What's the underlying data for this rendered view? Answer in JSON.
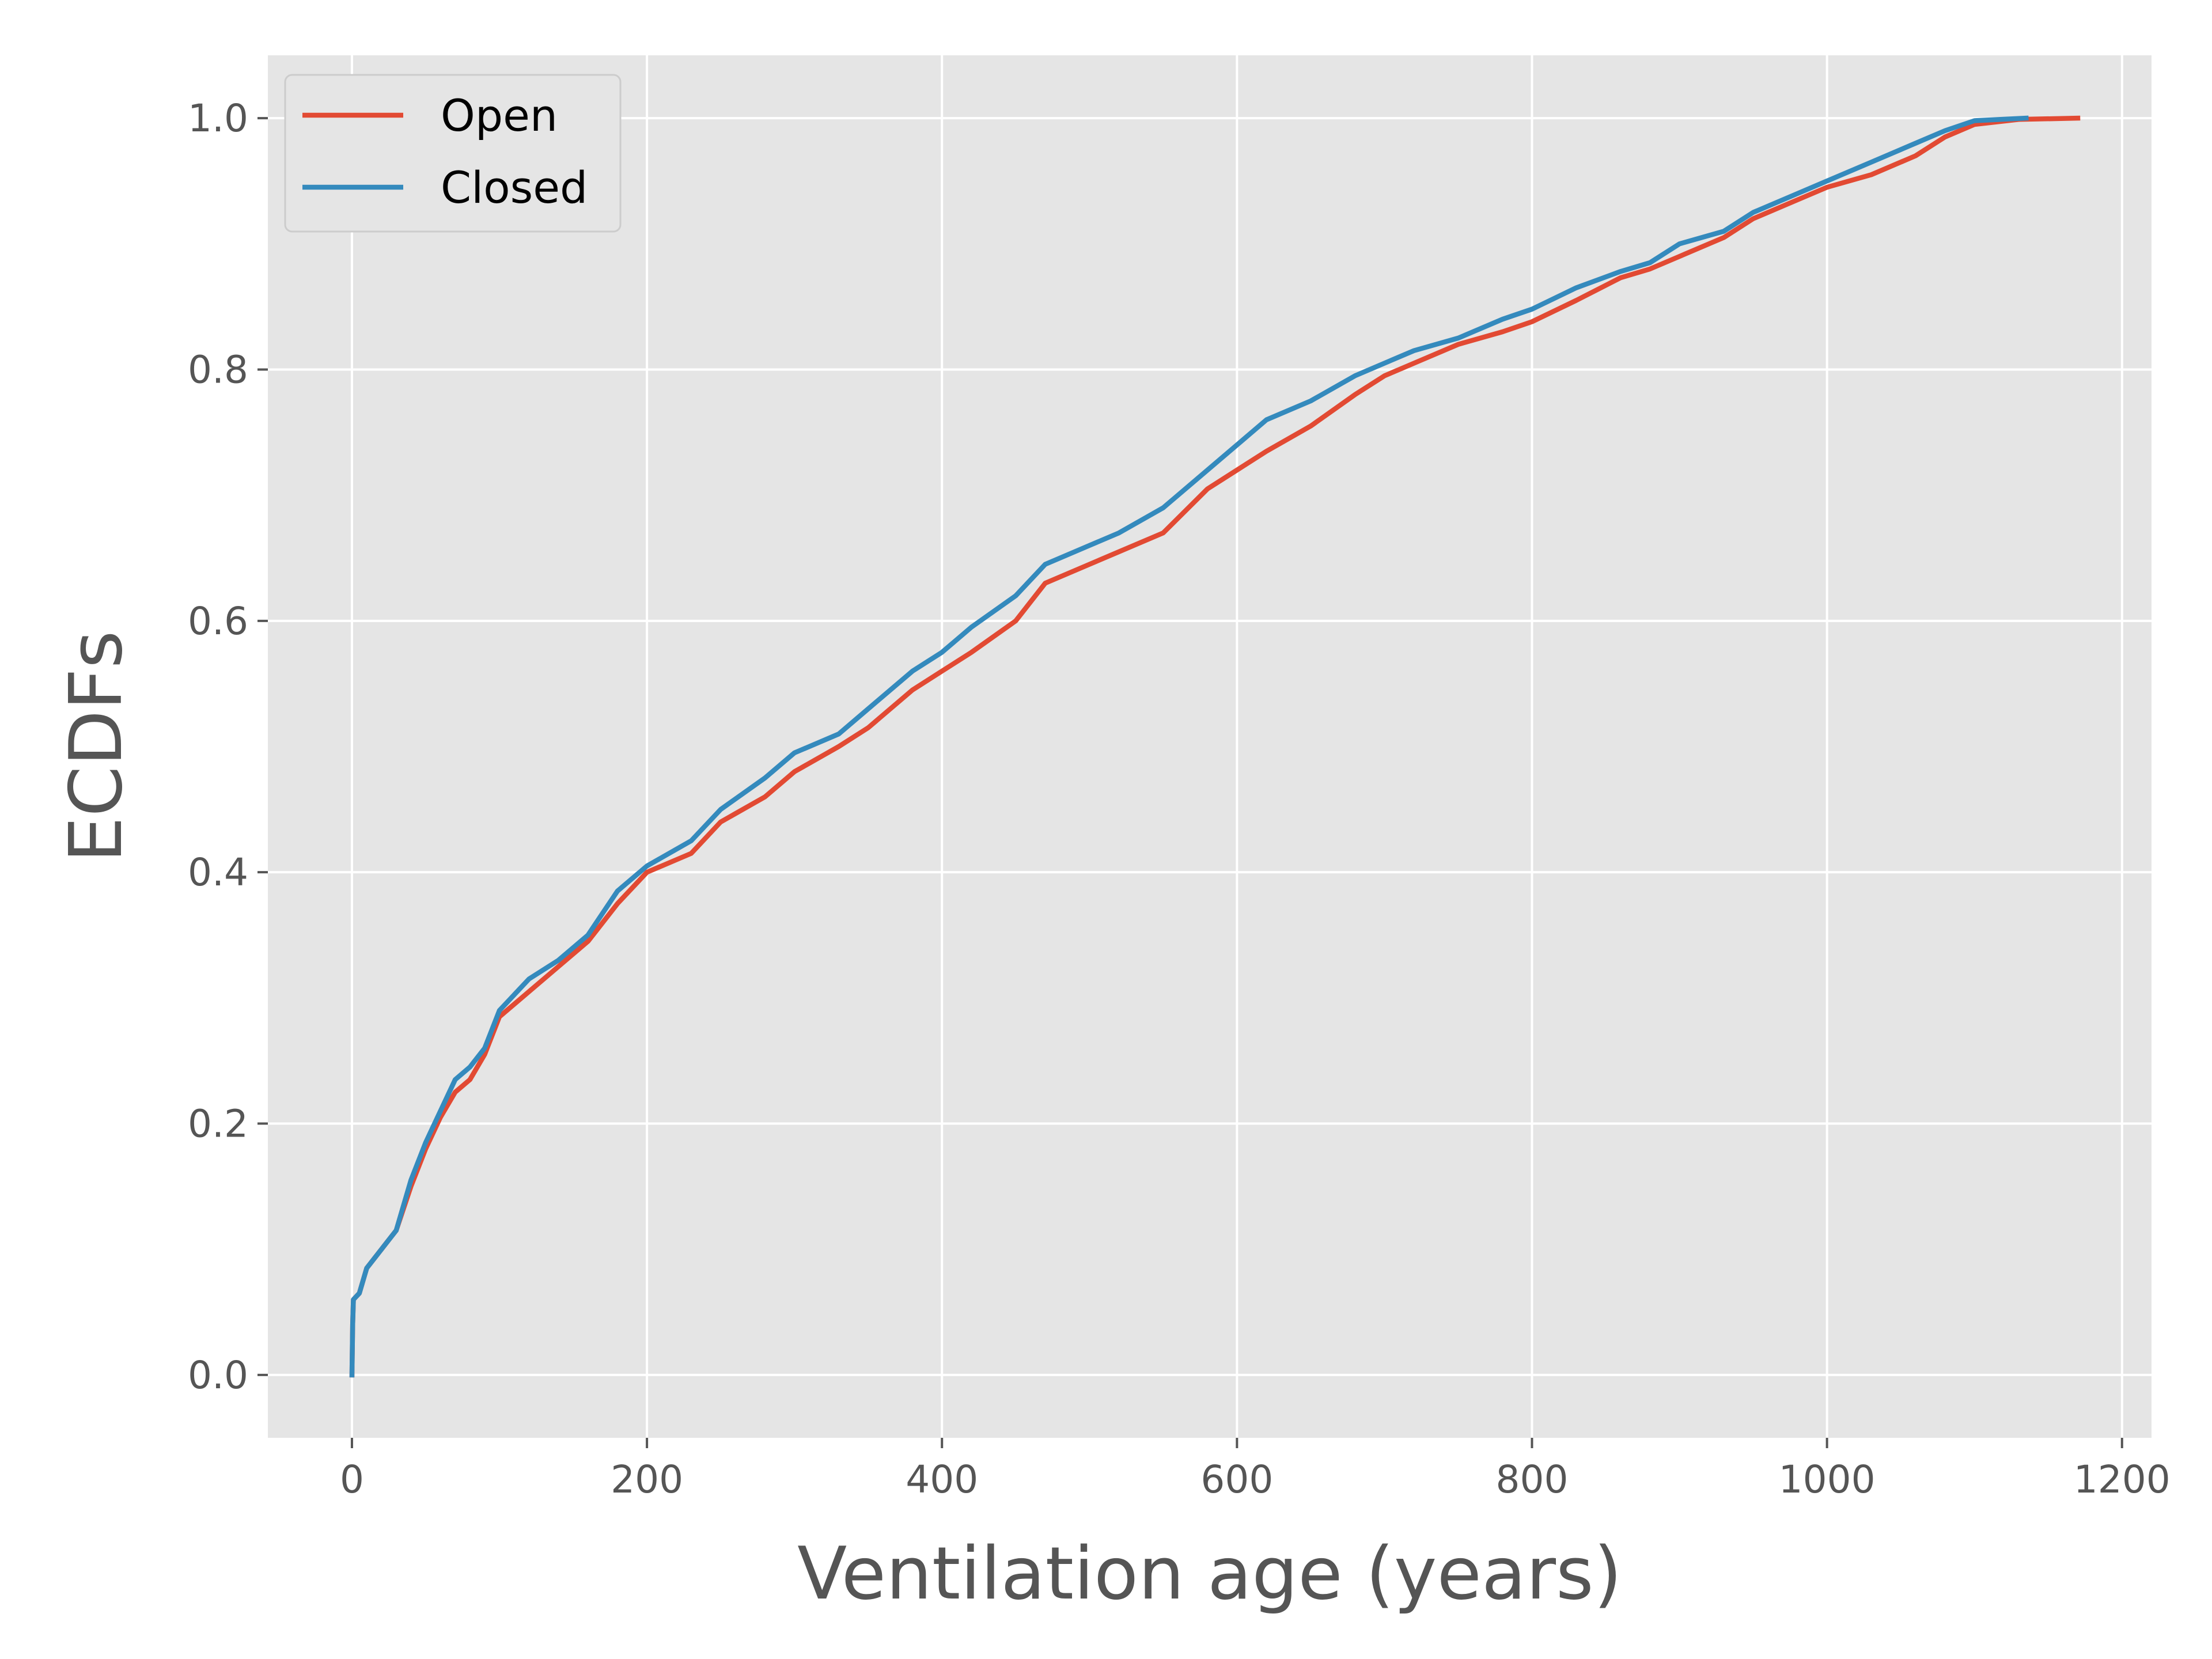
{
  "chart_data": {
    "type": "line",
    "title": "",
    "xlabel": "Ventilation age (years)",
    "ylabel": "ECDFs",
    "xlim": [
      -57,
      1220
    ],
    "ylim": [
      -0.05,
      1.05
    ],
    "xticks": [
      0,
      200,
      400,
      600,
      800,
      1000,
      1200
    ],
    "xtick_labels": [
      "0",
      "200",
      "400",
      "600",
      "800",
      "1000",
      "1200"
    ],
    "yticks": [
      0.0,
      0.2,
      0.4,
      0.6,
      0.8,
      1.0
    ],
    "ytick_labels": [
      "0.0",
      "0.2",
      "0.4",
      "0.6",
      "0.8",
      "1.0"
    ],
    "grid": true,
    "legend_position": "top-left",
    "background": "#e5e5e5",
    "series": [
      {
        "name": "Open",
        "color": "#e24a33",
        "points": [
          [
            0,
            0.0
          ],
          [
            0.5,
            0.04
          ],
          [
            1,
            0.06
          ],
          [
            5,
            0.065
          ],
          [
            10,
            0.085
          ],
          [
            20,
            0.1
          ],
          [
            30,
            0.115
          ],
          [
            40,
            0.15
          ],
          [
            50,
            0.18
          ],
          [
            60,
            0.205
          ],
          [
            70,
            0.225
          ],
          [
            80,
            0.235
          ],
          [
            90,
            0.255
          ],
          [
            100,
            0.285
          ],
          [
            120,
            0.305
          ],
          [
            140,
            0.325
          ],
          [
            160,
            0.345
          ],
          [
            180,
            0.375
          ],
          [
            200,
            0.4
          ],
          [
            230,
            0.415
          ],
          [
            250,
            0.44
          ],
          [
            280,
            0.46
          ],
          [
            300,
            0.48
          ],
          [
            330,
            0.5
          ],
          [
            350,
            0.515
          ],
          [
            380,
            0.545
          ],
          [
            400,
            0.56
          ],
          [
            420,
            0.575
          ],
          [
            450,
            0.6
          ],
          [
            470,
            0.63
          ],
          [
            500,
            0.645
          ],
          [
            520,
            0.655
          ],
          [
            550,
            0.67
          ],
          [
            580,
            0.705
          ],
          [
            600,
            0.72
          ],
          [
            620,
            0.735
          ],
          [
            650,
            0.755
          ],
          [
            680,
            0.78
          ],
          [
            700,
            0.795
          ],
          [
            720,
            0.805
          ],
          [
            750,
            0.82
          ],
          [
            780,
            0.83
          ],
          [
            800,
            0.838
          ],
          [
            830,
            0.855
          ],
          [
            860,
            0.873
          ],
          [
            880,
            0.88
          ],
          [
            900,
            0.89
          ],
          [
            930,
            0.905
          ],
          [
            950,
            0.92
          ],
          [
            980,
            0.935
          ],
          [
            1000,
            0.945
          ],
          [
            1030,
            0.955
          ],
          [
            1060,
            0.97
          ],
          [
            1080,
            0.985
          ],
          [
            1100,
            0.995
          ],
          [
            1130,
            0.999
          ],
          [
            1170,
            1.0
          ]
        ]
      },
      {
        "name": "Closed",
        "color": "#348abd",
        "points": [
          [
            0,
            0.0
          ],
          [
            0.5,
            0.04
          ],
          [
            1,
            0.06
          ],
          [
            5,
            0.065
          ],
          [
            10,
            0.085
          ],
          [
            20,
            0.1
          ],
          [
            30,
            0.115
          ],
          [
            40,
            0.155
          ],
          [
            50,
            0.185
          ],
          [
            60,
            0.21
          ],
          [
            70,
            0.235
          ],
          [
            80,
            0.245
          ],
          [
            90,
            0.26
          ],
          [
            100,
            0.29
          ],
          [
            120,
            0.315
          ],
          [
            140,
            0.33
          ],
          [
            160,
            0.35
          ],
          [
            180,
            0.385
          ],
          [
            200,
            0.405
          ],
          [
            230,
            0.425
          ],
          [
            250,
            0.45
          ],
          [
            280,
            0.475
          ],
          [
            300,
            0.495
          ],
          [
            330,
            0.51
          ],
          [
            350,
            0.53
          ],
          [
            380,
            0.56
          ],
          [
            400,
            0.575
          ],
          [
            420,
            0.595
          ],
          [
            450,
            0.62
          ],
          [
            470,
            0.645
          ],
          [
            500,
            0.66
          ],
          [
            520,
            0.67
          ],
          [
            550,
            0.69
          ],
          [
            580,
            0.72
          ],
          [
            600,
            0.74
          ],
          [
            620,
            0.76
          ],
          [
            650,
            0.775
          ],
          [
            680,
            0.795
          ],
          [
            700,
            0.805
          ],
          [
            720,
            0.815
          ],
          [
            750,
            0.825
          ],
          [
            780,
            0.84
          ],
          [
            800,
            0.848
          ],
          [
            830,
            0.865
          ],
          [
            860,
            0.878
          ],
          [
            880,
            0.885
          ],
          [
            900,
            0.9
          ],
          [
            930,
            0.91
          ],
          [
            950,
            0.925
          ],
          [
            980,
            0.94
          ],
          [
            1000,
            0.95
          ],
          [
            1030,
            0.965
          ],
          [
            1060,
            0.98
          ],
          [
            1080,
            0.99
          ],
          [
            1100,
            0.998
          ],
          [
            1135,
            1.0
          ]
        ]
      }
    ]
  }
}
